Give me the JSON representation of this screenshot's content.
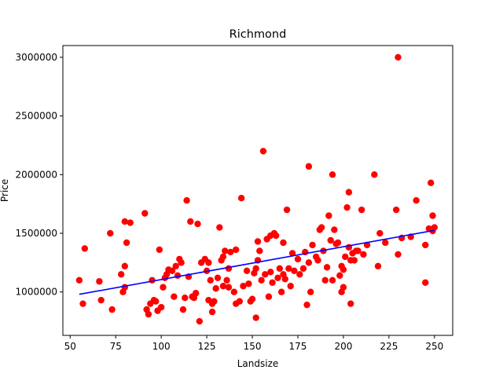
{
  "chart_data": {
    "type": "scatter",
    "title": "Richmond",
    "xlabel": "Landsize",
    "ylabel": "Price",
    "xlim": [
      46,
      260
    ],
    "ylim": [
      630000,
      3100000
    ],
    "xticks": [
      50,
      75,
      100,
      125,
      150,
      175,
      200,
      225,
      250
    ],
    "yticks": [
      1000000,
      1500000,
      2000000,
      2500000,
      3000000
    ],
    "grid": false,
    "colors": {
      "points": "#ff0000",
      "fit_line": "#0000ff"
    },
    "points": [
      [
        55,
        1100000
      ],
      [
        57,
        900000
      ],
      [
        58,
        1370000
      ],
      [
        66,
        1090000
      ],
      [
        67,
        930000
      ],
      [
        72,
        1500000
      ],
      [
        73,
        850000
      ],
      [
        78,
        1150000
      ],
      [
        79,
        1000000
      ],
      [
        80,
        1600000
      ],
      [
        80,
        1040000
      ],
      [
        80,
        1220000
      ],
      [
        81,
        1420000
      ],
      [
        83,
        1590000
      ],
      [
        91,
        1670000
      ],
      [
        92,
        850000
      ],
      [
        93,
        810000
      ],
      [
        94,
        900000
      ],
      [
        95,
        1100000
      ],
      [
        96,
        930000
      ],
      [
        97,
        920000
      ],
      [
        98,
        840000
      ],
      [
        99,
        1360000
      ],
      [
        100,
        870000
      ],
      [
        101,
        1040000
      ],
      [
        102,
        1120000
      ],
      [
        103,
        1150000
      ],
      [
        104,
        1190000
      ],
      [
        106,
        1180000
      ],
      [
        107,
        960000
      ],
      [
        108,
        1220000
      ],
      [
        109,
        1140000
      ],
      [
        110,
        1280000
      ],
      [
        111,
        1250000
      ],
      [
        112,
        850000
      ],
      [
        113,
        950000
      ],
      [
        114,
        1780000
      ],
      [
        115,
        1130000
      ],
      [
        116,
        1600000
      ],
      [
        117,
        960000
      ],
      [
        118,
        950000
      ],
      [
        119,
        990000
      ],
      [
        120,
        1580000
      ],
      [
        121,
        750000
      ],
      [
        122,
        1250000
      ],
      [
        124,
        1280000
      ],
      [
        125,
        1180000
      ],
      [
        126,
        1250000
      ],
      [
        126,
        930000
      ],
      [
        127,
        1100000
      ],
      [
        128,
        830000
      ],
      [
        128,
        900000
      ],
      [
        129,
        920000
      ],
      [
        130,
        1030000
      ],
      [
        131,
        1120000
      ],
      [
        132,
        1550000
      ],
      [
        133,
        1270000
      ],
      [
        134,
        1300000
      ],
      [
        134,
        1050000
      ],
      [
        135,
        1350000
      ],
      [
        136,
        1100000
      ],
      [
        137,
        1040000
      ],
      [
        137,
        1200000
      ],
      [
        138,
        1340000
      ],
      [
        140,
        1000000
      ],
      [
        141,
        900000
      ],
      [
        141,
        1360000
      ],
      [
        143,
        920000
      ],
      [
        144,
        1800000
      ],
      [
        145,
        1050000
      ],
      [
        147,
        1180000
      ],
      [
        148,
        1070000
      ],
      [
        149,
        920000
      ],
      [
        150,
        940000
      ],
      [
        151,
        1160000
      ],
      [
        152,
        780000
      ],
      [
        152,
        1200000
      ],
      [
        153,
        1270000
      ],
      [
        153,
        1430000
      ],
      [
        154,
        1350000
      ],
      [
        155,
        1100000
      ],
      [
        156,
        2200000
      ],
      [
        157,
        1150000
      ],
      [
        158,
        1450000
      ],
      [
        159,
        960000
      ],
      [
        160,
        1170000
      ],
      [
        160,
        1480000
      ],
      [
        161,
        1080000
      ],
      [
        162,
        1500000
      ],
      [
        163,
        1480000
      ],
      [
        164,
        1120000
      ],
      [
        165,
        1200000
      ],
      [
        166,
        1000000
      ],
      [
        167,
        1150000
      ],
      [
        167,
        1420000
      ],
      [
        168,
        1110000
      ],
      [
        169,
        1700000
      ],
      [
        170,
        1200000
      ],
      [
        171,
        1050000
      ],
      [
        172,
        1330000
      ],
      [
        173,
        1180000
      ],
      [
        175,
        1280000
      ],
      [
        176,
        1150000
      ],
      [
        178,
        1200000
      ],
      [
        179,
        1340000
      ],
      [
        180,
        890000
      ],
      [
        181,
        1250000
      ],
      [
        181,
        2070000
      ],
      [
        182,
        1000000
      ],
      [
        183,
        1400000
      ],
      [
        185,
        1300000
      ],
      [
        186,
        1270000
      ],
      [
        187,
        1530000
      ],
      [
        188,
        1550000
      ],
      [
        189,
        1350000
      ],
      [
        190,
        1100000
      ],
      [
        191,
        1210000
      ],
      [
        192,
        1650000
      ],
      [
        193,
        1440000
      ],
      [
        194,
        1100000
      ],
      [
        194,
        2000000
      ],
      [
        195,
        1530000
      ],
      [
        196,
        1410000
      ],
      [
        197,
        1420000
      ],
      [
        198,
        1140000
      ],
      [
        199,
        1000000
      ],
      [
        199,
        1220000
      ],
      [
        200,
        1040000
      ],
      [
        200,
        1190000
      ],
      [
        201,
        1300000
      ],
      [
        202,
        1720000
      ],
      [
        203,
        1850000
      ],
      [
        203,
        1380000
      ],
      [
        204,
        1270000
      ],
      [
        204,
        900000
      ],
      [
        205,
        1330000
      ],
      [
        206,
        1270000
      ],
      [
        207,
        1350000
      ],
      [
        208,
        1350000
      ],
      [
        210,
        1700000
      ],
      [
        211,
        1320000
      ],
      [
        213,
        1400000
      ],
      [
        217,
        2000000
      ],
      [
        219,
        1220000
      ],
      [
        220,
        1500000
      ],
      [
        223,
        1420000
      ],
      [
        229,
        1700000
      ],
      [
        230,
        3000000
      ],
      [
        230,
        1320000
      ],
      [
        232,
        1460000
      ],
      [
        237,
        1470000
      ],
      [
        240,
        1780000
      ],
      [
        245,
        1400000
      ],
      [
        245,
        1080000
      ],
      [
        247,
        1540000
      ],
      [
        248,
        1930000
      ],
      [
        249,
        1520000
      ],
      [
        249,
        1650000
      ],
      [
        250,
        1550000
      ]
    ],
    "fit_line": {
      "x": [
        55,
        250
      ],
      "y": [
        980000,
        1525000
      ]
    }
  }
}
